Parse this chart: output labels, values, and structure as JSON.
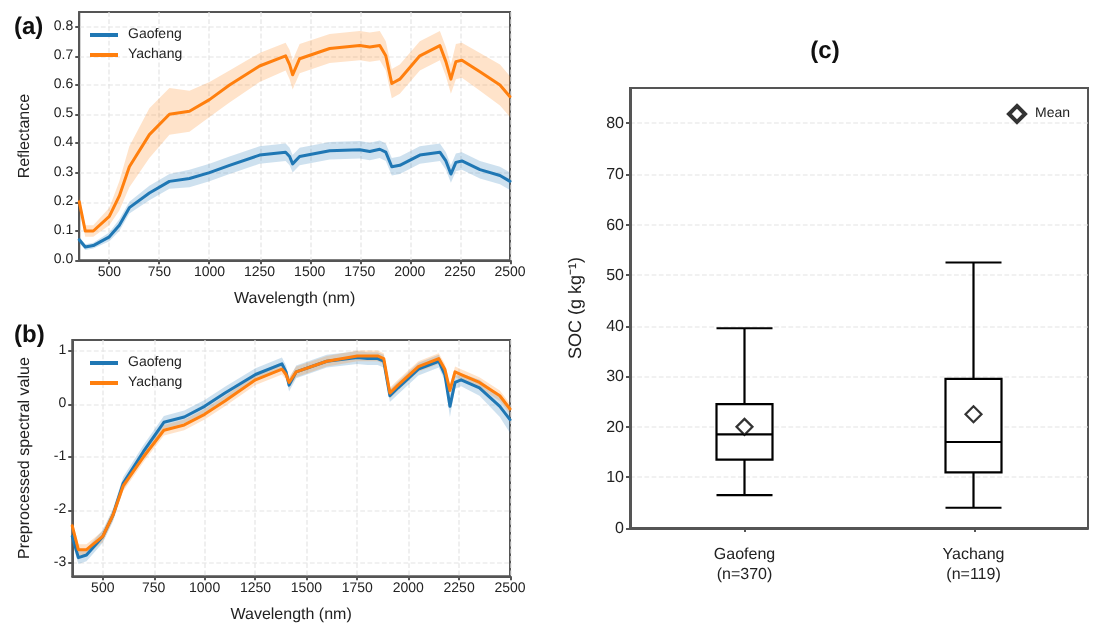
{
  "chart_data": [
    {
      "type": "line",
      "title": "(a)",
      "xlabel": "Wavelength (nm)",
      "ylabel": "Reflectance",
      "legend": "top left",
      "grid": true,
      "marker": "none",
      "line_style": "solid",
      "x": [
        350,
        380,
        420,
        500,
        550,
        600,
        700,
        800,
        900,
        1000,
        1100,
        1250,
        1380,
        1400,
        1415,
        1450,
        1600,
        1750,
        1800,
        1850,
        1880,
        1910,
        1950,
        2050,
        2150,
        2180,
        2205,
        2230,
        2260,
        2350,
        2450,
        2500
      ],
      "xlim": [
        350,
        2500
      ],
      "xticks": [
        500,
        750,
        1000,
        1250,
        1500,
        1750,
        2000,
        2250,
        2500
      ],
      "ylim": [
        0,
        0.85
      ],
      "yticks": [
        {
          "value": 0,
          "label": "0.0"
        },
        0.1,
        0.2,
        0.3,
        0.4,
        0.5,
        0.6,
        0.7,
        0.8
      ],
      "series": [
        {
          "name": "Gaofeng",
          "color": "#1f77b4",
          "values": [
            0.07,
            0.045,
            0.05,
            0.08,
            0.12,
            0.18,
            0.23,
            0.27,
            0.28,
            0.3,
            0.325,
            0.36,
            0.37,
            0.355,
            0.33,
            0.355,
            0.375,
            0.378,
            0.372,
            0.38,
            0.37,
            0.32,
            0.325,
            0.36,
            0.37,
            0.34,
            0.295,
            0.335,
            0.34,
            0.31,
            0.29,
            0.27
          ],
          "lower": [
            0.06,
            0.035,
            0.04,
            0.065,
            0.1,
            0.16,
            0.205,
            0.245,
            0.25,
            0.27,
            0.295,
            0.33,
            0.34,
            0.325,
            0.3,
            0.325,
            0.345,
            0.348,
            0.342,
            0.35,
            0.34,
            0.29,
            0.295,
            0.33,
            0.34,
            0.31,
            0.265,
            0.305,
            0.31,
            0.28,
            0.26,
            0.24
          ],
          "upper": [
            0.08,
            0.055,
            0.06,
            0.095,
            0.14,
            0.2,
            0.255,
            0.295,
            0.31,
            0.33,
            0.355,
            0.39,
            0.4,
            0.385,
            0.36,
            0.385,
            0.405,
            0.408,
            0.402,
            0.41,
            0.4,
            0.35,
            0.355,
            0.39,
            0.4,
            0.37,
            0.325,
            0.365,
            0.37,
            0.34,
            0.32,
            0.3
          ]
        },
        {
          "name": "Yachang",
          "color": "#ff7f0e",
          "values": [
            0.2,
            0.1,
            0.1,
            0.15,
            0.22,
            0.32,
            0.43,
            0.5,
            0.51,
            0.55,
            0.6,
            0.665,
            0.7,
            0.67,
            0.635,
            0.69,
            0.725,
            0.735,
            0.73,
            0.735,
            0.7,
            0.605,
            0.62,
            0.7,
            0.735,
            0.68,
            0.62,
            0.68,
            0.685,
            0.645,
            0.6,
            0.56
          ],
          "lower": [
            0.18,
            0.08,
            0.08,
            0.12,
            0.17,
            0.25,
            0.35,
            0.43,
            0.44,
            0.49,
            0.54,
            0.61,
            0.65,
            0.62,
            0.585,
            0.64,
            0.675,
            0.685,
            0.68,
            0.685,
            0.65,
            0.555,
            0.57,
            0.65,
            0.685,
            0.63,
            0.57,
            0.62,
            0.625,
            0.58,
            0.53,
            0.49
          ],
          "upper": [
            0.22,
            0.12,
            0.12,
            0.18,
            0.27,
            0.39,
            0.52,
            0.59,
            0.58,
            0.61,
            0.65,
            0.71,
            0.745,
            0.72,
            0.685,
            0.74,
            0.775,
            0.785,
            0.78,
            0.785,
            0.75,
            0.655,
            0.67,
            0.75,
            0.785,
            0.73,
            0.67,
            0.74,
            0.745,
            0.71,
            0.67,
            0.63
          ]
        }
      ]
    },
    {
      "type": "line",
      "title": "(b)",
      "xlabel": "Wavelength (nm)",
      "ylabel": "Preprocessed spectral value",
      "legend": "top left",
      "grid": true,
      "marker": "none",
      "line_style": "solid",
      "x": [
        350,
        380,
        420,
        500,
        550,
        600,
        700,
        800,
        900,
        1000,
        1100,
        1250,
        1380,
        1400,
        1415,
        1450,
        1600,
        1750,
        1800,
        1850,
        1880,
        1910,
        1950,
        2050,
        2150,
        2180,
        2205,
        2230,
        2260,
        2350,
        2450,
        2500
      ],
      "xlim": [
        350,
        2500
      ],
      "xticks": [
        500,
        750,
        1000,
        1250,
        1500,
        1750,
        2000,
        2250,
        2500
      ],
      "ylim": [
        -3.25,
        1.2
      ],
      "yticks": [
        -3,
        -2,
        -1,
        0,
        1
      ],
      "series": [
        {
          "name": "Gaofeng",
          "color": "#1f77b4",
          "values": [
            -2.5,
            -2.9,
            -2.85,
            -2.5,
            -2.1,
            -1.5,
            -0.9,
            -0.35,
            -0.25,
            -0.05,
            0.2,
            0.55,
            0.75,
            0.6,
            0.35,
            0.6,
            0.8,
            0.87,
            0.85,
            0.85,
            0.8,
            0.15,
            0.3,
            0.65,
            0.8,
            0.55,
            -0.05,
            0.4,
            0.45,
            0.3,
            -0.05,
            -0.3
          ],
          "lower": [
            -2.62,
            -3.02,
            -2.97,
            -2.62,
            -2.22,
            -1.62,
            -1.02,
            -0.47,
            -0.37,
            -0.17,
            0.08,
            0.43,
            0.63,
            0.48,
            0.23,
            0.48,
            0.68,
            0.75,
            0.73,
            0.73,
            0.68,
            0.03,
            0.18,
            0.53,
            0.68,
            0.43,
            -0.25,
            0.28,
            0.33,
            0.15,
            -0.25,
            -0.55
          ],
          "upper": [
            -2.38,
            -2.78,
            -2.73,
            -2.38,
            -1.98,
            -1.38,
            -0.78,
            -0.23,
            -0.13,
            0.07,
            0.32,
            0.67,
            0.87,
            0.72,
            0.47,
            0.72,
            0.92,
            0.99,
            0.97,
            0.97,
            0.92,
            0.27,
            0.42,
            0.77,
            0.92,
            0.67,
            0.15,
            0.52,
            0.57,
            0.45,
            0.15,
            -0.05
          ]
        },
        {
          "name": "Yachang",
          "color": "#ff7f0e",
          "values": [
            -2.3,
            -2.75,
            -2.75,
            -2.5,
            -2.1,
            -1.55,
            -1.0,
            -0.5,
            -0.4,
            -0.2,
            0.05,
            0.45,
            0.65,
            0.55,
            0.4,
            0.6,
            0.8,
            0.9,
            0.9,
            0.9,
            0.85,
            0.2,
            0.35,
            0.7,
            0.85,
            0.65,
            0.25,
            0.6,
            0.55,
            0.4,
            0.15,
            -0.1
          ],
          "lower": [
            -2.4,
            -2.85,
            -2.85,
            -2.6,
            -2.2,
            -1.65,
            -1.1,
            -0.6,
            -0.5,
            -0.3,
            -0.05,
            0.35,
            0.55,
            0.45,
            0.3,
            0.5,
            0.7,
            0.8,
            0.8,
            0.8,
            0.75,
            0.1,
            0.25,
            0.6,
            0.75,
            0.55,
            0.15,
            0.5,
            0.45,
            0.3,
            0.05,
            -0.2
          ],
          "upper": [
            -2.2,
            -2.65,
            -2.65,
            -2.4,
            -2.0,
            -1.45,
            -0.9,
            -0.4,
            -0.3,
            -0.1,
            0.15,
            0.55,
            0.75,
            0.65,
            0.5,
            0.7,
            0.9,
            1.0,
            1.0,
            1.0,
            0.95,
            0.3,
            0.45,
            0.8,
            0.95,
            0.75,
            0.35,
            0.7,
            0.65,
            0.5,
            0.25,
            0.0
          ]
        }
      ]
    },
    {
      "type": "box",
      "title": "(c)",
      "ylabel": "SOC (g kg⁻¹)",
      "legend": "top right",
      "grid": "y",
      "categories": [
        "Gaofeng\n(n=370)",
        "Yachang\n(n=119)"
      ],
      "ylim": [
        0,
        87
      ],
      "yticks": [
        0,
        10,
        20,
        30,
        40,
        50,
        60,
        70,
        80
      ],
      "series": [
        {
          "type": "box",
          "color": "#000000",
          "boxes": [
            {
              "low": 6.5,
              "q1": 13.5,
              "median": 18.5,
              "q3": 24.5,
              "high": 39.5
            },
            {
              "low": 4,
              "q1": 11,
              "median": 17,
              "q3": 29.5,
              "high": 52.5
            }
          ]
        },
        {
          "type": "scatter",
          "name": "Mean",
          "color": "#000000",
          "marker": "diamond",
          "x": [
            "Gaofeng\n(n=370)",
            "Yachang\n(n=119)"
          ],
          "values": [
            20,
            22.5
          ]
        }
      ]
    }
  ]
}
